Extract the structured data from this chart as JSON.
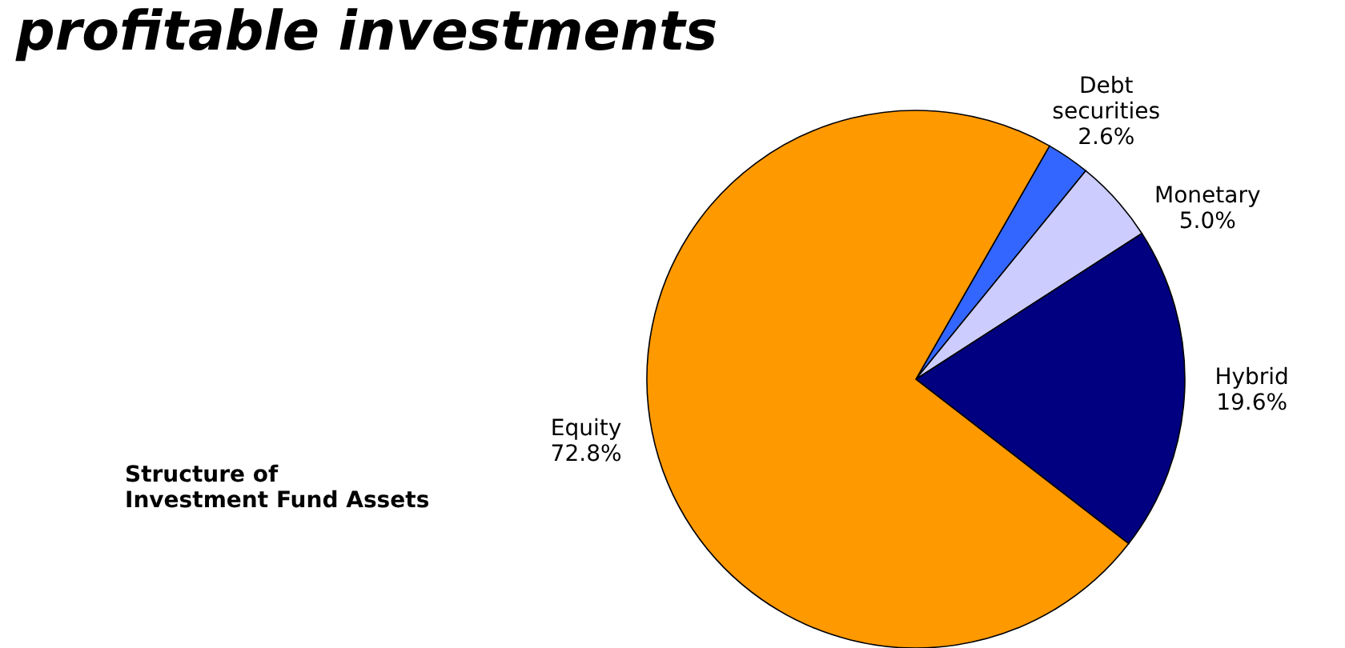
{
  "chart_data": {
    "type": "pie",
    "title": "profitable investments",
    "annotations": [
      "Structure of\nInvestment Fund Assets"
    ],
    "categories": [
      "Debt securities",
      "Monetary",
      "Hybrid",
      "Equity"
    ],
    "values": [
      2.6,
      5.0,
      19.6,
      72.8
    ],
    "colors": [
      "#3366ff",
      "#ccccff",
      "#000080",
      "#ff9900"
    ],
    "value_labels": [
      "2.6%",
      "5.0%",
      "19.6%",
      "72.8%"
    ]
  }
}
